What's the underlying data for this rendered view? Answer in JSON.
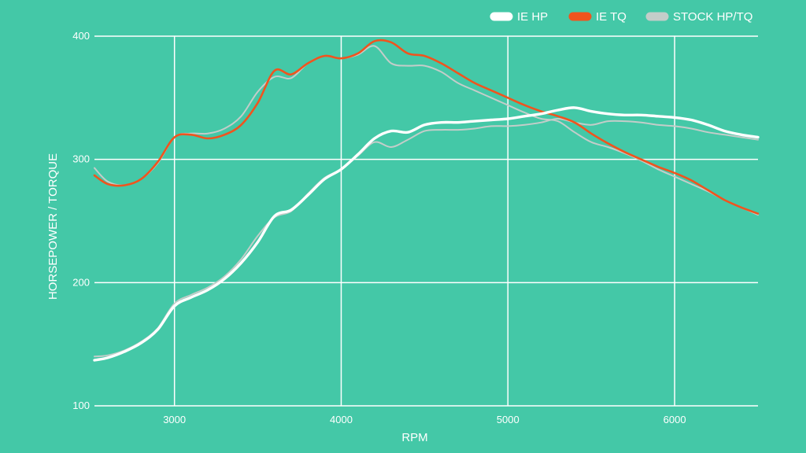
{
  "chart_data": {
    "type": "line",
    "xlabel": "RPM",
    "ylabel": "HORSEPOWER / TORQUE",
    "xlim": [
      2520,
      6500
    ],
    "ylim": [
      100,
      400
    ],
    "x_ticks": [
      3000,
      4000,
      5000,
      6000
    ],
    "y_ticks": [
      100,
      200,
      300,
      400
    ],
    "grid": true,
    "legend_position": "top-right",
    "series": [
      {
        "name": "STOCK HP/TQ",
        "color": "#c3cdc9",
        "line_group": "stock-tq",
        "x": [
          2520,
          2600,
          2700,
          2800,
          2900,
          3000,
          3100,
          3200,
          3300,
          3400,
          3500,
          3600,
          3700,
          3800,
          3900,
          4000,
          4100,
          4200,
          4300,
          4400,
          4500,
          4600,
          4700,
          4800,
          4900,
          5000,
          5100,
          5200,
          5300,
          5400,
          5500,
          5600,
          5700,
          5800,
          5900,
          6000,
          6100,
          6200,
          6300,
          6400,
          6500
        ],
        "values": [
          293,
          282,
          279,
          284,
          297,
          318,
          321,
          321,
          325,
          335,
          355,
          367,
          366,
          378,
          384,
          382,
          385,
          392,
          378,
          376,
          376,
          371,
          362,
          356,
          350,
          344,
          338,
          333,
          331,
          322,
          314,
          310,
          305,
          299,
          292,
          286,
          280,
          274,
          267,
          261,
          255
        ]
      },
      {
        "name": "",
        "color": "#c3cdc9",
        "line_group": "stock-hp",
        "x": [
          2520,
          2600,
          2700,
          2800,
          2900,
          3000,
          3100,
          3200,
          3300,
          3400,
          3500,
          3600,
          3700,
          3800,
          3900,
          4000,
          4100,
          4200,
          4300,
          4400,
          4500,
          4600,
          4700,
          4800,
          4900,
          5000,
          5100,
          5200,
          5300,
          5400,
          5500,
          5600,
          5700,
          5800,
          5900,
          6000,
          6100,
          6200,
          6300,
          6400,
          6500
        ],
        "values": [
          140,
          141,
          145,
          152,
          163,
          183,
          190,
          196,
          205,
          219,
          238,
          253,
          258,
          272,
          285,
          292,
          303,
          314,
          310,
          316,
          323,
          324,
          324,
          325,
          327,
          327,
          328,
          330,
          333,
          330,
          328,
          331,
          331,
          330,
          328,
          327,
          325,
          322,
          320,
          318,
          316
        ]
      },
      {
        "name": "IE TQ",
        "color": "#f0541e",
        "line_group": "ie-tq",
        "x": [
          2520,
          2600,
          2700,
          2800,
          2900,
          3000,
          3100,
          3200,
          3300,
          3400,
          3500,
          3600,
          3700,
          3800,
          3900,
          4000,
          4100,
          4200,
          4300,
          4400,
          4500,
          4600,
          4700,
          4800,
          4900,
          5000,
          5100,
          5200,
          5300,
          5400,
          5500,
          5600,
          5700,
          5800,
          5900,
          6000,
          6100,
          6200,
          6300,
          6400,
          6500
        ],
        "values": [
          287,
          280,
          279,
          284,
          298,
          318,
          320,
          317,
          320,
          328,
          346,
          372,
          369,
          378,
          384,
          382,
          386,
          396,
          395,
          386,
          384,
          378,
          370,
          362,
          356,
          350,
          344,
          339,
          335,
          330,
          321,
          313,
          306,
          300,
          294,
          289,
          283,
          275,
          267,
          261,
          256
        ]
      },
      {
        "name": "IE HP",
        "color": "#ffffff",
        "line_group": "ie-hp",
        "x": [
          2520,
          2600,
          2700,
          2800,
          2900,
          3000,
          3100,
          3200,
          3300,
          3400,
          3500,
          3600,
          3700,
          3800,
          3900,
          4000,
          4100,
          4200,
          4300,
          4400,
          4500,
          4600,
          4700,
          4800,
          4900,
          5000,
          5100,
          5200,
          5300,
          5400,
          5500,
          5600,
          5700,
          5800,
          5900,
          6000,
          6100,
          6200,
          6300,
          6400,
          6500
        ],
        "values": [
          137,
          139,
          144,
          151,
          162,
          181,
          188,
          194,
          203,
          216,
          233,
          254,
          259,
          271,
          284,
          292,
          304,
          317,
          323,
          322,
          328,
          330,
          330,
          331,
          332,
          333,
          335,
          337,
          340,
          342,
          339,
          337,
          336,
          336,
          335,
          334,
          332,
          328,
          323,
          320,
          318
        ]
      }
    ],
    "legend": [
      {
        "label": "IE HP",
        "color": "#ffffff"
      },
      {
        "label": "IE TQ",
        "color": "#f0541e"
      },
      {
        "label": "STOCK HP/TQ",
        "color": "#c3cdc9"
      }
    ]
  }
}
